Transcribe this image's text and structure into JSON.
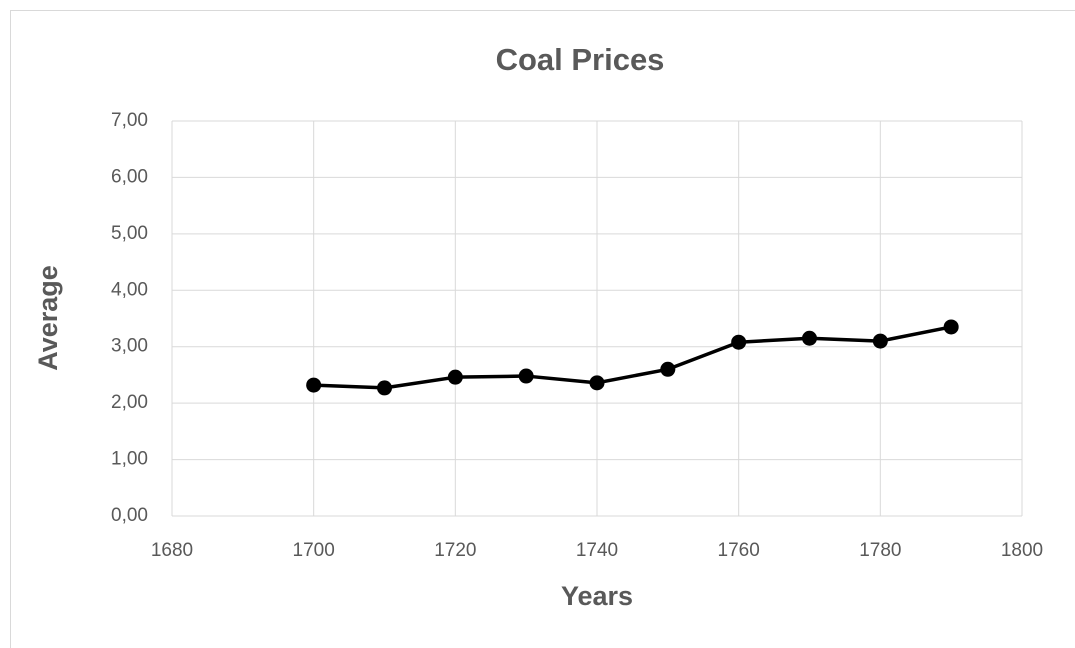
{
  "chart_data": {
    "type": "line",
    "title": "Coal Prices",
    "x_label": "Years",
    "y_label": "Average",
    "x": [
      1700,
      1710,
      1720,
      1730,
      1740,
      1750,
      1760,
      1770,
      1780,
      1790
    ],
    "series": [
      {
        "color": "#000000",
        "values": [
          2.32,
          2.27,
          2.46,
          2.48,
          2.36,
          2.6,
          3.08,
          3.15,
          3.1,
          3.35
        ]
      }
    ],
    "xlim": [
      1680,
      1800
    ],
    "xticks": [
      1680,
      1700,
      1720,
      1740,
      1760,
      1780,
      1800
    ],
    "ylim": [
      0,
      7
    ],
    "yticks": [
      {
        "value": 0,
        "label": "0,00"
      },
      {
        "value": 1,
        "label": "1,00"
      },
      {
        "value": 2,
        "label": "2,00"
      },
      {
        "value": 3,
        "label": "3,00"
      },
      {
        "value": 4,
        "label": "4,00"
      },
      {
        "value": 5,
        "label": "5,00"
      },
      {
        "value": 6,
        "label": "6,00"
      },
      {
        "value": 7,
        "label": "7,00"
      }
    ],
    "grid": true
  }
}
